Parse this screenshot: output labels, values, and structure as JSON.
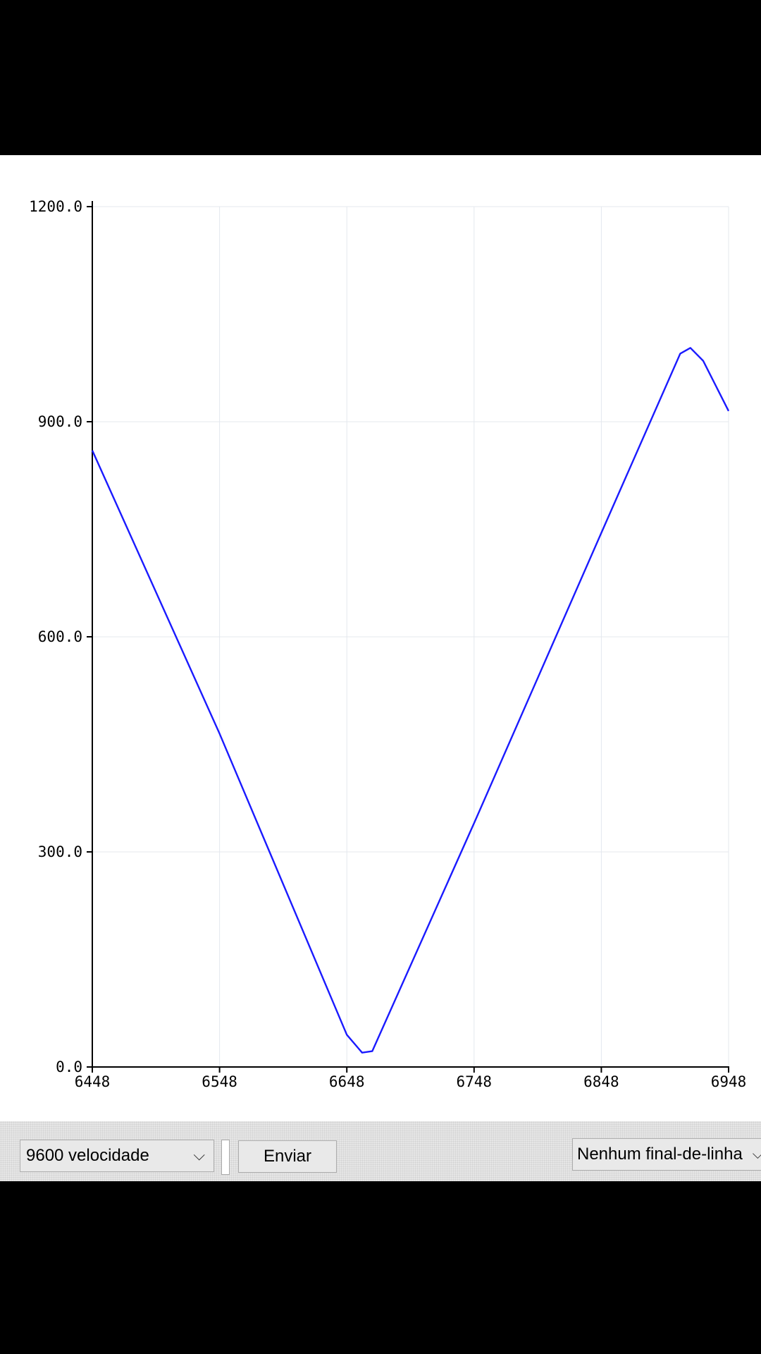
{
  "chart_data": {
    "type": "line",
    "title": "",
    "xlabel": "",
    "ylabel": "",
    "xlim": [
      6448,
      6948
    ],
    "ylim": [
      0,
      1200
    ],
    "grid": true,
    "x_ticks": [
      "6448",
      "6548",
      "6648",
      "6748",
      "6848",
      "6948"
    ],
    "y_ticks": [
      "0.0",
      "300.0",
      "600.0",
      "900.0",
      "1200.0"
    ],
    "series": [
      {
        "color": "#1a1aff",
        "x": [
          6448,
          6548,
          6648,
          6660,
          6668,
          6748,
          6848,
          6910,
          6918,
          6928,
          6948
        ],
        "y": [
          860,
          465,
          45,
          20,
          22,
          340,
          745,
          995,
          1003,
          985,
          915
        ]
      }
    ]
  },
  "toolbar": {
    "baud_label": "9600 velocidade",
    "send_label": "Enviar",
    "line_ending_label": "Nenhum final-de-linha"
  },
  "icons": {
    "dropdown": "chevron-down-icon"
  }
}
